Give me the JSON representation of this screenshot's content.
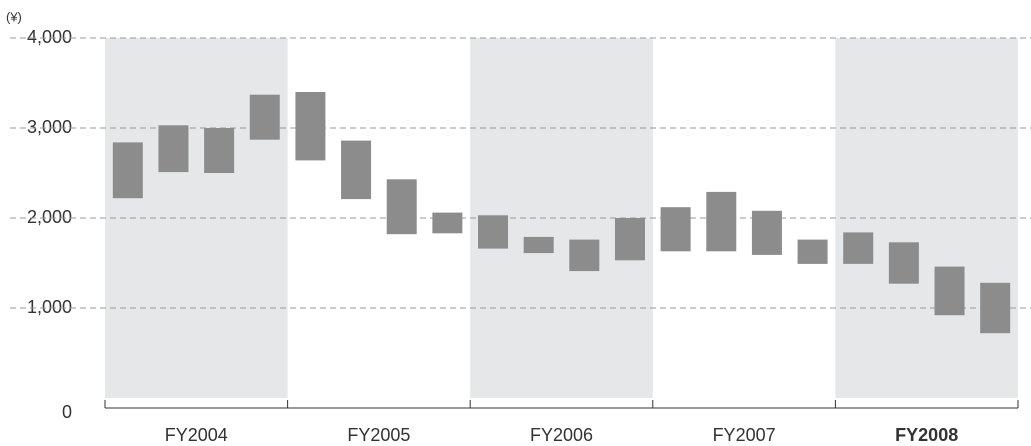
{
  "chart_data": {
    "type": "range_bar",
    "y_label": "(¥)",
    "categories": [
      "FY2004",
      "FY2005",
      "FY2006",
      "FY2007",
      "FY2008"
    ],
    "bars_per_category": 4,
    "low": [
      2220,
      2510,
      2500,
      2870,
      2640,
      2210,
      1820,
      1830,
      1660,
      1610,
      1410,
      1530,
      1630,
      1630,
      1590,
      1490,
      1490,
      1270,
      920,
      720
    ],
    "high": [
      2840,
      3030,
      3000,
      3370,
      3400,
      2860,
      2430,
      2060,
      2030,
      1790,
      1760,
      2000,
      2120,
      2290,
      2080,
      1760,
      1840,
      1730,
      1460,
      1280
    ],
    "color": "#8c8c8c",
    "ylim": [
      0,
      4000
    ],
    "yticks": [
      0,
      {
        "value": 1000,
        "label": "1,000"
      },
      {
        "value": 2000,
        "label": "2,000"
      },
      {
        "value": 3000,
        "label": "3,000"
      },
      {
        "value": 4000,
        "label": "4,000"
      }
    ],
    "grid": true
  }
}
